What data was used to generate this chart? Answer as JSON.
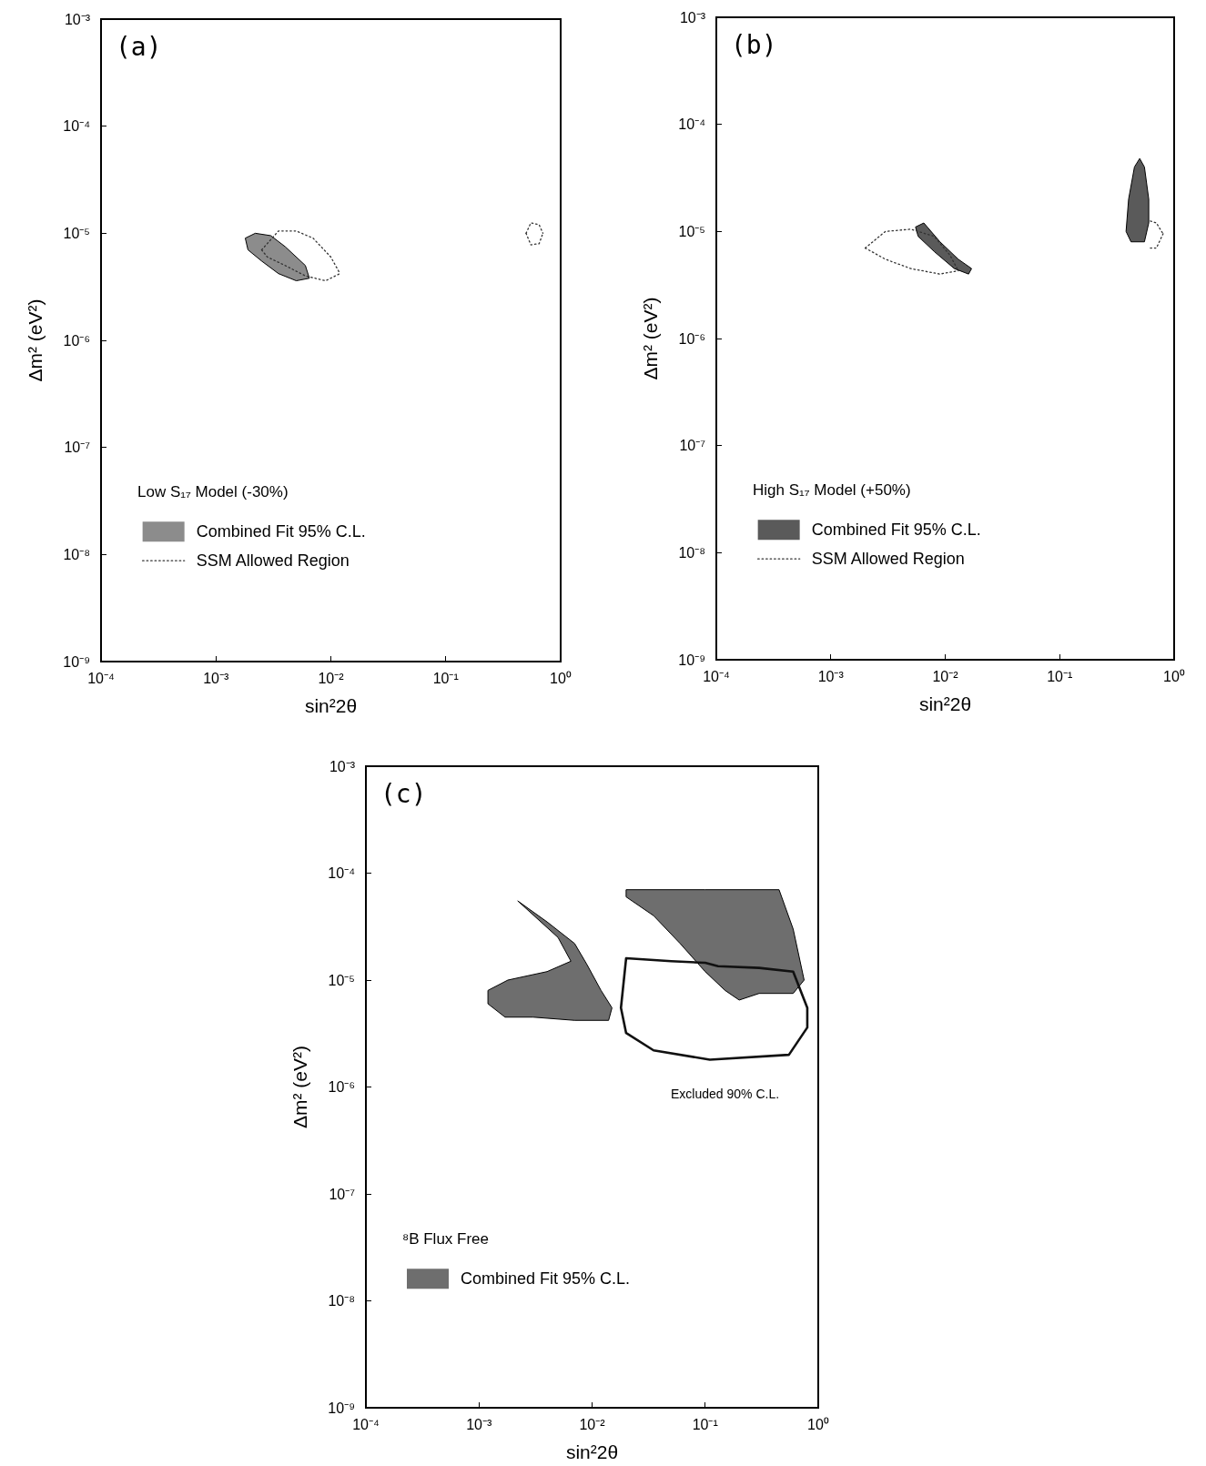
{
  "chart_data": [
    {
      "type": "line",
      "xlabel": "sin²2θ",
      "ylabel": "Δm² (eV²)",
      "log": "xy",
      "legend": "bottom left",
      "legend_title": "Low S₁₇ Model (-30%)",
      "annotations": [
        "(a)"
      ],
      "xlim": [
        0.0001,
        1
      ],
      "ylim": [
        1e-09,
        0.001
      ],
      "xticks": [
        {
          "value": 0.0001,
          "label": "10⁻⁴"
        },
        {
          "value": 0.001,
          "label": "10⁻³"
        },
        {
          "value": 0.01,
          "label": "10⁻²"
        },
        {
          "value": 0.1,
          "label": "10⁻¹"
        },
        {
          "value": 1,
          "label": "10⁰"
        }
      ],
      "yticks": [
        {
          "value": 1e-09,
          "label": "10⁻⁹"
        },
        {
          "value": 1e-08,
          "label": "10⁻⁸"
        },
        {
          "value": 1e-07,
          "label": "10⁻⁷"
        },
        {
          "value": 1e-06,
          "label": "10⁻⁶"
        },
        {
          "value": 1e-05,
          "label": "10⁻⁵"
        },
        {
          "value": 0.0001,
          "label": "10⁻⁴"
        },
        {
          "value": 0.001,
          "label": "10⁻³"
        }
      ],
      "series": [
        {
          "type": "area",
          "name": "Combined Fit 95% C.L.",
          "color": "#8c8c8c",
          "x": [
            0.0018,
            0.0022,
            0.003,
            0.004,
            0.006,
            0.0065,
            0.005,
            0.0035,
            0.0025,
            0.0019,
            0.0018
          ],
          "values": [
            9e-06,
            1e-05,
            9.5e-06,
            7.5e-06,
            5e-06,
            3.8e-06,
            3.6e-06,
            4.2e-06,
            5.5e-06,
            7e-06,
            9e-06
          ]
        },
        {
          "type": "line",
          "name": "SSM Allowed Region",
          "color": "#333333",
          "line_style": "dotted",
          "x": [
            0.0025,
            0.0035,
            0.005,
            0.007,
            0.01,
            0.012,
            null,
            0.5,
            0.55,
            0.65,
            0.7
          ],
          "values": [
            7e-06,
            1.05e-05,
            1.05e-05,
            9e-06,
            6e-06,
            4.2e-06,
            null,
            1e-05,
            1.25e-05,
            1.2e-05,
            1e-05
          ]
        },
        {
          "type": "line",
          "color": "#333333",
          "line_style": "dotted",
          "x": [
            0.0025,
            0.0028,
            0.004,
            0.006,
            0.009,
            0.012,
            null,
            0.5,
            0.55,
            0.65,
            0.7
          ],
          "values": [
            7e-06,
            6e-06,
            5e-06,
            4e-06,
            3.6e-06,
            4.2e-06,
            null,
            1e-05,
            7.8e-06,
            8e-06,
            1e-05
          ]
        }
      ]
    },
    {
      "type": "line",
      "xlabel": "sin²2θ",
      "ylabel": "Δm² (eV²)",
      "log": "xy",
      "legend": "bottom left",
      "legend_title": "High S₁₇ Model (+50%)",
      "annotations": [
        "(b)"
      ],
      "xlim": [
        0.0001,
        1
      ],
      "ylim": [
        1e-09,
        0.001
      ],
      "xticks": [
        {
          "value": 0.0001,
          "label": "10⁻⁴"
        },
        {
          "value": 0.001,
          "label": "10⁻³"
        },
        {
          "value": 0.01,
          "label": "10⁻²"
        },
        {
          "value": 0.1,
          "label": "10⁻¹"
        },
        {
          "value": 1,
          "label": "10⁰"
        }
      ],
      "yticks": [
        {
          "value": 1e-09,
          "label": "10⁻⁹"
        },
        {
          "value": 1e-08,
          "label": "10⁻⁸"
        },
        {
          "value": 1e-07,
          "label": "10⁻⁷"
        },
        {
          "value": 1e-06,
          "label": "10⁻⁶"
        },
        {
          "value": 1e-05,
          "label": "10⁻⁵"
        },
        {
          "value": 0.0001,
          "label": "10⁻⁴"
        },
        {
          "value": 0.001,
          "label": "10⁻³"
        }
      ],
      "series": [
        {
          "type": "area",
          "name": "Combined Fit 95% C.L.",
          "color": "#5a5a5a",
          "x": [
            0.0055,
            0.0065,
            0.009,
            0.013,
            0.017,
            0.016,
            0.012,
            0.008,
            0.0058,
            0.0055,
            null,
            0.4,
            0.45,
            0.5,
            0.55,
            0.6,
            0.6,
            0.55,
            0.42,
            0.38,
            0.4
          ],
          "values": [
            1.1e-05,
            1.2e-05,
            8e-06,
            5.5e-06,
            4.5e-06,
            4e-06,
            4.5e-06,
            6.5e-06,
            9e-06,
            1.1e-05,
            null,
            2e-05,
            4e-05,
            4.8e-05,
            4e-05,
            2e-05,
            1.2e-05,
            8e-06,
            8e-06,
            1e-05,
            2e-05
          ]
        },
        {
          "type": "line",
          "name": "SSM Allowed Region",
          "color": "#333333",
          "line_style": "dotted",
          "x": [
            0.002,
            0.003,
            0.005,
            0.008,
            0.011,
            0.013,
            null,
            0.62,
            0.7,
            0.8
          ],
          "values": [
            7e-06,
            1e-05,
            1.05e-05,
            9e-06,
            6e-06,
            4.3e-06,
            null,
            1.25e-05,
            1.2e-05,
            9.5e-06
          ]
        },
        {
          "type": "line",
          "color": "#333333",
          "line_style": "dotted",
          "x": [
            0.002,
            0.003,
            0.005,
            0.009,
            0.013,
            null,
            0.62,
            0.7,
            0.8
          ],
          "values": [
            7e-06,
            5.5e-06,
            4.5e-06,
            4e-06,
            4.3e-06,
            null,
            7e-06,
            7e-06,
            9.5e-06
          ]
        }
      ]
    },
    {
      "type": "line",
      "xlabel": "sin²2θ",
      "ylabel": "Δm² (eV²)",
      "log": "xy",
      "legend": "bottom left",
      "legend_title": "⁸B Flux Free",
      "annotations": [
        "(c)",
        "Excluded 90% C.L."
      ],
      "xlim": [
        0.0001,
        1
      ],
      "ylim": [
        1e-09,
        0.001
      ],
      "xticks": [
        {
          "value": 0.0001,
          "label": "10⁻⁴"
        },
        {
          "value": 0.001,
          "label": "10⁻³"
        },
        {
          "value": 0.01,
          "label": "10⁻²"
        },
        {
          "value": 0.1,
          "label": "10⁻¹"
        },
        {
          "value": 1,
          "label": "10⁰"
        }
      ],
      "yticks": [
        {
          "value": 1e-09,
          "label": "10⁻⁹"
        },
        {
          "value": 1e-08,
          "label": "10⁻⁸"
        },
        {
          "value": 1e-07,
          "label": "10⁻⁷"
        },
        {
          "value": 1e-06,
          "label": "10⁻⁶"
        },
        {
          "value": 1e-05,
          "label": "10⁻⁵"
        },
        {
          "value": 0.0001,
          "label": "10⁻⁴"
        },
        {
          "value": 0.001,
          "label": "10⁻³"
        }
      ],
      "series": [
        {
          "type": "area",
          "name": "Combined Fit 95% C.L.",
          "color": "#6e6e6e",
          "x": [
            0.0022,
            0.004,
            0.007,
            0.009,
            0.012,
            0.015,
            0.014,
            0.007,
            0.003,
            0.0017,
            0.0012,
            0.0012,
            0.0018,
            0.004,
            0.0065,
            0.005,
            0.0022,
            null,
            0.02,
            0.1,
            0.45,
            0.6,
            0.75,
            0.6,
            0.3,
            0.2,
            0.15,
            0.1,
            0.06,
            0.035,
            0.02,
            0.02
          ],
          "values": [
            5.5e-05,
            3.5e-05,
            2.2e-05,
            1.4e-05,
            8e-06,
            5.5e-06,
            4.2e-06,
            4.2e-06,
            4.5e-06,
            4.5e-06,
            6e-06,
            8e-06,
            1e-05,
            1.2e-05,
            1.5e-05,
            2.5e-05,
            5.5e-05,
            null,
            7e-05,
            7e-05,
            7e-05,
            3e-05,
            1e-05,
            7.5e-06,
            7.5e-06,
            6.5e-06,
            8e-06,
            1.2e-05,
            2.2e-05,
            4e-05,
            6e-05,
            7e-05
          ]
        },
        {
          "type": "line",
          "color": "#111111",
          "line_style": "solid",
          "x": [
            0.018,
            0.02,
            0.05,
            0.1,
            0.13,
            0.3,
            0.6,
            0.8,
            null,
            0.018,
            0.02,
            0.035,
            0.11,
            0.55,
            0.8,
            0.8
          ],
          "values": [
            5.5e-06,
            1.6e-05,
            1.5e-05,
            1.45e-05,
            1.35e-05,
            1.3e-05,
            1.2e-05,
            5.5e-06,
            null,
            5.5e-06,
            3.2e-06,
            2.2e-06,
            1.8e-06,
            2e-06,
            3.6e-06,
            5.5e-06
          ]
        }
      ]
    }
  ]
}
